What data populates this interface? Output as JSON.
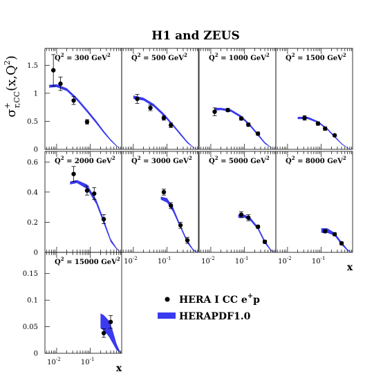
{
  "chart_data": {
    "type": "scatter",
    "title": "H1 and ZEUS",
    "ylabel": "σ",
    "ylabel_sup": "+",
    "ylabel_sub": "r,CC",
    "ylabel_args": "(x,Q",
    "ylabel_args_sup": "2",
    "ylabel_args_end": ")",
    "xlabel": "x",
    "xscale": "log",
    "grid": false,
    "legend_position": "lower-right",
    "legend": [
      {
        "name": "HERA I CC e",
        "sup": "+",
        "suffix": "p",
        "kind": "points"
      },
      {
        "name": "HERAPDF1.0",
        "kind": "band"
      }
    ],
    "colors": {
      "band": "#3a3af0",
      "points": "#000000"
    },
    "rows": [
      {
        "ylim": [
          0,
          1.8
        ],
        "yticks": [
          0,
          0.5,
          1,
          1.5
        ],
        "ytick_labels": [
          "0",
          "0.5",
          "1",
          "1.5"
        ]
      },
      {
        "ylim": [
          0,
          0.67
        ],
        "yticks": [
          0,
          0.2,
          0.4,
          0.6
        ],
        "ytick_labels": [
          "0",
          "0.2",
          "0.4",
          "0.6"
        ]
      },
      {
        "ylim": [
          0,
          0.19
        ],
        "yticks": [
          0,
          0.05,
          0.1,
          0.15
        ],
        "ytick_labels": [
          "0",
          "0.05",
          "0.1",
          "0.15"
        ]
      }
    ],
    "xlim": [
      0.0045,
      0.85
    ],
    "xticks": [
      0.01,
      0.1
    ],
    "xtick_base": [
      "10",
      "10"
    ],
    "xtick_exp": [
      "-2",
      "-1"
    ],
    "panels": [
      {
        "q2_prefix": "Q",
        "q2_sup": "2",
        "q2_value": " = 300 GeV",
        "q2_unit_sup": "2",
        "row": 0,
        "col": 0,
        "points": [
          {
            "x": 0.008,
            "y": 1.41,
            "err": 0.28
          },
          {
            "x": 0.013,
            "y": 1.17,
            "err": 0.12
          },
          {
            "x": 0.032,
            "y": 0.87,
            "err": 0.07
          },
          {
            "x": 0.08,
            "y": 0.49,
            "err": 0.04
          }
        ],
        "band": {
          "x": [
            0.006,
            0.01,
            0.02,
            0.04,
            0.08,
            0.15,
            0.25,
            0.4,
            0.6,
            0.8
          ],
          "lo": [
            1.1,
            1.11,
            1.04,
            0.87,
            0.66,
            0.46,
            0.29,
            0.15,
            0.05,
            0.0
          ],
          "hi": [
            1.15,
            1.16,
            1.09,
            0.92,
            0.71,
            0.51,
            0.33,
            0.18,
            0.07,
            0.0
          ]
        }
      },
      {
        "q2_prefix": "Q",
        "q2_sup": "2",
        "q2_value": " = 500 GeV",
        "q2_unit_sup": "2",
        "row": 0,
        "col": 1,
        "points": [
          {
            "x": 0.013,
            "y": 0.9,
            "err": 0.08
          },
          {
            "x": 0.032,
            "y": 0.74,
            "err": 0.05
          },
          {
            "x": 0.08,
            "y": 0.56,
            "err": 0.04
          },
          {
            "x": 0.13,
            "y": 0.43,
            "err": 0.04
          }
        ],
        "band": {
          "x": [
            0.01,
            0.02,
            0.04,
            0.08,
            0.15,
            0.25,
            0.4,
            0.6,
            0.8
          ],
          "lo": [
            0.9,
            0.87,
            0.76,
            0.59,
            0.41,
            0.25,
            0.11,
            0.03,
            0.0
          ],
          "hi": [
            0.96,
            0.92,
            0.81,
            0.64,
            0.45,
            0.29,
            0.14,
            0.04,
            0.0
          ]
        }
      },
      {
        "q2_prefix": "Q",
        "q2_sup": "2",
        "q2_value": " = 1000 GeV",
        "q2_unit_sup": "2",
        "row": 0,
        "col": 2,
        "points": [
          {
            "x": 0.013,
            "y": 0.67,
            "err": 0.07
          },
          {
            "x": 0.032,
            "y": 0.7,
            "err": 0.03
          },
          {
            "x": 0.08,
            "y": 0.55,
            "err": 0.03
          },
          {
            "x": 0.13,
            "y": 0.44,
            "err": 0.03
          },
          {
            "x": 0.25,
            "y": 0.28,
            "err": 0.03
          }
        ],
        "band": {
          "x": [
            0.013,
            0.02,
            0.04,
            0.08,
            0.15,
            0.25,
            0.4,
            0.6,
            0.8
          ],
          "lo": [
            0.69,
            0.7,
            0.67,
            0.56,
            0.4,
            0.24,
            0.1,
            0.03,
            0.0
          ],
          "hi": [
            0.74,
            0.74,
            0.71,
            0.6,
            0.44,
            0.28,
            0.13,
            0.04,
            0.0
          ]
        }
      },
      {
        "q2_prefix": "Q",
        "q2_sup": "2",
        "q2_value": " = 1500 GeV",
        "q2_unit_sup": "2",
        "row": 0,
        "col": 3,
        "points": [
          {
            "x": 0.032,
            "y": 0.56,
            "err": 0.04
          },
          {
            "x": 0.08,
            "y": 0.46,
            "err": 0.03
          },
          {
            "x": 0.13,
            "y": 0.37,
            "err": 0.03
          },
          {
            "x": 0.25,
            "y": 0.25,
            "err": 0.02
          }
        ],
        "band": {
          "x": [
            0.02,
            0.04,
            0.08,
            0.15,
            0.25,
            0.4,
            0.6,
            0.8
          ],
          "lo": [
            0.54,
            0.54,
            0.47,
            0.35,
            0.21,
            0.09,
            0.02,
            0.0
          ],
          "hi": [
            0.58,
            0.58,
            0.5,
            0.38,
            0.24,
            0.11,
            0.03,
            0.0
          ]
        }
      },
      {
        "q2_prefix": "Q",
        "q2_sup": "2",
        "q2_value": " = 2000 GeV",
        "q2_unit_sup": "2",
        "row": 1,
        "col": 0,
        "points": [
          {
            "x": 0.032,
            "y": 0.52,
            "err": 0.05
          },
          {
            "x": 0.08,
            "y": 0.41,
            "err": 0.03
          },
          {
            "x": 0.13,
            "y": 0.39,
            "err": 0.04
          },
          {
            "x": 0.25,
            "y": 0.22,
            "err": 0.03
          }
        ],
        "band": {
          "x": [
            0.025,
            0.04,
            0.08,
            0.15,
            0.25,
            0.4,
            0.6,
            0.8
          ],
          "lo": [
            0.45,
            0.46,
            0.42,
            0.32,
            0.19,
            0.07,
            0.02,
            0.0
          ],
          "hi": [
            0.47,
            0.48,
            0.45,
            0.35,
            0.22,
            0.09,
            0.03,
            0.0
          ]
        }
      },
      {
        "q2_prefix": "Q",
        "q2_sup": "2",
        "q2_value": " = 3000 GeV",
        "q2_unit_sup": "2",
        "row": 1,
        "col": 1,
        "points": [
          {
            "x": 0.08,
            "y": 0.4,
            "err": 0.02
          },
          {
            "x": 0.13,
            "y": 0.31,
            "err": 0.02
          },
          {
            "x": 0.25,
            "y": 0.18,
            "err": 0.02
          },
          {
            "x": 0.4,
            "y": 0.08,
            "err": 0.02
          }
        ],
        "band": {
          "x": [
            0.065,
            0.1,
            0.15,
            0.25,
            0.4,
            0.6,
            0.8
          ],
          "lo": [
            0.35,
            0.33,
            0.27,
            0.16,
            0.06,
            0.01,
            0.0
          ],
          "hi": [
            0.37,
            0.36,
            0.3,
            0.18,
            0.08,
            0.02,
            0.0
          ]
        }
      },
      {
        "q2_prefix": "Q",
        "q2_sup": "2",
        "q2_value": " = 5000 GeV",
        "q2_unit_sup": "2",
        "row": 1,
        "col": 2,
        "points": [
          {
            "x": 0.08,
            "y": 0.25,
            "err": 0.02
          },
          {
            "x": 0.13,
            "y": 0.23,
            "err": 0.02
          },
          {
            "x": 0.25,
            "y": 0.17,
            "err": 0.01
          },
          {
            "x": 0.4,
            "y": 0.07,
            "err": 0.01
          }
        ],
        "band": {
          "x": [
            0.065,
            0.1,
            0.15,
            0.25,
            0.4,
            0.6,
            0.8
          ],
          "lo": [
            0.23,
            0.23,
            0.21,
            0.15,
            0.06,
            0.01,
            0.0
          ],
          "hi": [
            0.25,
            0.25,
            0.23,
            0.17,
            0.08,
            0.02,
            0.0
          ]
        }
      },
      {
        "q2_prefix": "Q",
        "q2_sup": "2",
        "q2_value": " = 8000 GeV",
        "q2_unit_sup": "2",
        "row": 1,
        "col": 3,
        "points": [
          {
            "x": 0.13,
            "y": 0.14,
            "err": 0.01
          },
          {
            "x": 0.25,
            "y": 0.12,
            "err": 0.01
          },
          {
            "x": 0.4,
            "y": 0.06,
            "err": 0.01
          }
        ],
        "band": {
          "x": [
            0.1,
            0.15,
            0.25,
            0.4,
            0.6,
            0.8
          ],
          "lo": [
            0.13,
            0.13,
            0.11,
            0.05,
            0.01,
            0.0
          ],
          "hi": [
            0.16,
            0.16,
            0.13,
            0.07,
            0.02,
            0.0
          ]
        }
      },
      {
        "q2_prefix": "Q",
        "q2_sup": "2",
        "q2_value": " = 15000 GeV",
        "q2_unit_sup": "2",
        "row": 2,
        "col": 0,
        "points": [
          {
            "x": 0.25,
            "y": 0.038,
            "err": 0.008
          },
          {
            "x": 0.4,
            "y": 0.059,
            "err": 0.012
          }
        ],
        "band": {
          "x": [
            0.2,
            0.25,
            0.35,
            0.45,
            0.6,
            0.8
          ],
          "lo": [
            0.047,
            0.043,
            0.032,
            0.02,
            0.006,
            0.0
          ],
          "hi": [
            0.075,
            0.072,
            0.062,
            0.045,
            0.018,
            0.0
          ]
        }
      }
    ]
  }
}
